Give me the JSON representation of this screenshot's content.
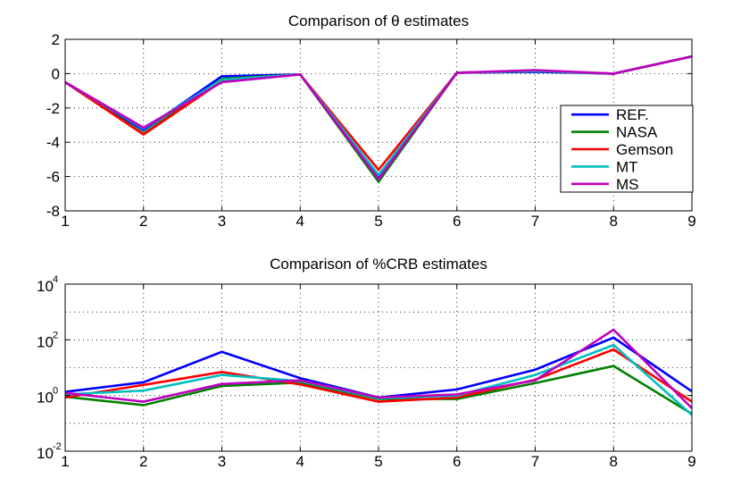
{
  "chart_data": [
    {
      "type": "line",
      "title": "Comparison of θ estimates",
      "yscale": "linear",
      "x": [
        1,
        2,
        3,
        4,
        5,
        6,
        7,
        8,
        9
      ],
      "xlim": [
        1,
        9
      ],
      "ylim": [
        -8,
        2
      ],
      "xticks": [
        "1",
        "2",
        "3",
        "4",
        "5",
        "6",
        "7",
        "8",
        "9"
      ],
      "yticks": [
        {
          "v": 2,
          "label": "2"
        },
        {
          "v": 0,
          "label": "0"
        },
        {
          "v": -2,
          "label": "-2"
        },
        {
          "v": -4,
          "label": "-4"
        },
        {
          "v": -6,
          "label": "-6"
        },
        {
          "v": -8,
          "label": "-8"
        }
      ],
      "grid": true,
      "legend_position": "right",
      "series": [
        {
          "name": "REF.",
          "color": "#0000ff",
          "values": [
            -0.5,
            -3.3,
            -0.15,
            -0.05,
            -6.1,
            0.05,
            0.1,
            0.0,
            1.0
          ]
        },
        {
          "name": "NASA",
          "color": "#008000",
          "values": [
            -0.5,
            -3.5,
            -0.3,
            -0.05,
            -6.3,
            0.05,
            0.15,
            0.0,
            1.0
          ]
        },
        {
          "name": "Gemson",
          "color": "#ff0000",
          "values": [
            -0.5,
            -3.55,
            -0.45,
            -0.05,
            -5.6,
            0.05,
            0.15,
            0.0,
            1.0
          ]
        },
        {
          "name": "MT",
          "color": "#00bfbf",
          "values": [
            -0.5,
            -3.2,
            -0.35,
            -0.05,
            -5.9,
            0.05,
            0.15,
            0.0,
            1.0
          ]
        },
        {
          "name": "MS",
          "color": "#bf00bf",
          "values": [
            -0.5,
            -3.15,
            -0.5,
            -0.05,
            -6.15,
            0.05,
            0.2,
            0.0,
            1.0
          ]
        }
      ]
    },
    {
      "type": "line",
      "title": "Comparison of  %CRB estimates",
      "yscale": "log",
      "x": [
        1,
        2,
        3,
        4,
        5,
        6,
        7,
        8,
        9
      ],
      "xlim": [
        1,
        9
      ],
      "ylim": [
        0.01,
        10000
      ],
      "xticks": [
        "1",
        "2",
        "3",
        "4",
        "5",
        "6",
        "7",
        "8",
        "9"
      ],
      "yticks": [
        {
          "v": 10000,
          "base": "10",
          "exp": "4"
        },
        {
          "v": 100,
          "base": "10",
          "exp": "2"
        },
        {
          "v": 1,
          "base": "10",
          "exp": "0"
        },
        {
          "v": 0.01,
          "base": "10",
          "exp": "-2"
        }
      ],
      "grid": true,
      "series": [
        {
          "name": "REF.",
          "color": "#0000ff",
          "values": [
            1.35,
            3.0,
            37,
            4.2,
            0.85,
            1.65,
            8.5,
            120,
            1.4
          ]
        },
        {
          "name": "NASA",
          "color": "#008000",
          "values": [
            0.9,
            0.45,
            2.2,
            2.9,
            0.75,
            0.75,
            2.8,
            11.5,
            0.22
          ]
        },
        {
          "name": "Gemson",
          "color": "#ff0000",
          "values": [
            0.85,
            2.4,
            7.0,
            2.5,
            0.6,
            0.85,
            3.7,
            45,
            0.6
          ]
        },
        {
          "name": "MT",
          "color": "#00bfbf",
          "values": [
            1.1,
            1.5,
            5.5,
            3.3,
            0.8,
            1.0,
            5.5,
            65,
            0.2
          ]
        },
        {
          "name": "MS",
          "color": "#bf00bf",
          "values": [
            1.25,
            0.6,
            2.6,
            3.5,
            0.85,
            1.1,
            3.5,
            230,
            0.35
          ]
        }
      ]
    }
  ]
}
